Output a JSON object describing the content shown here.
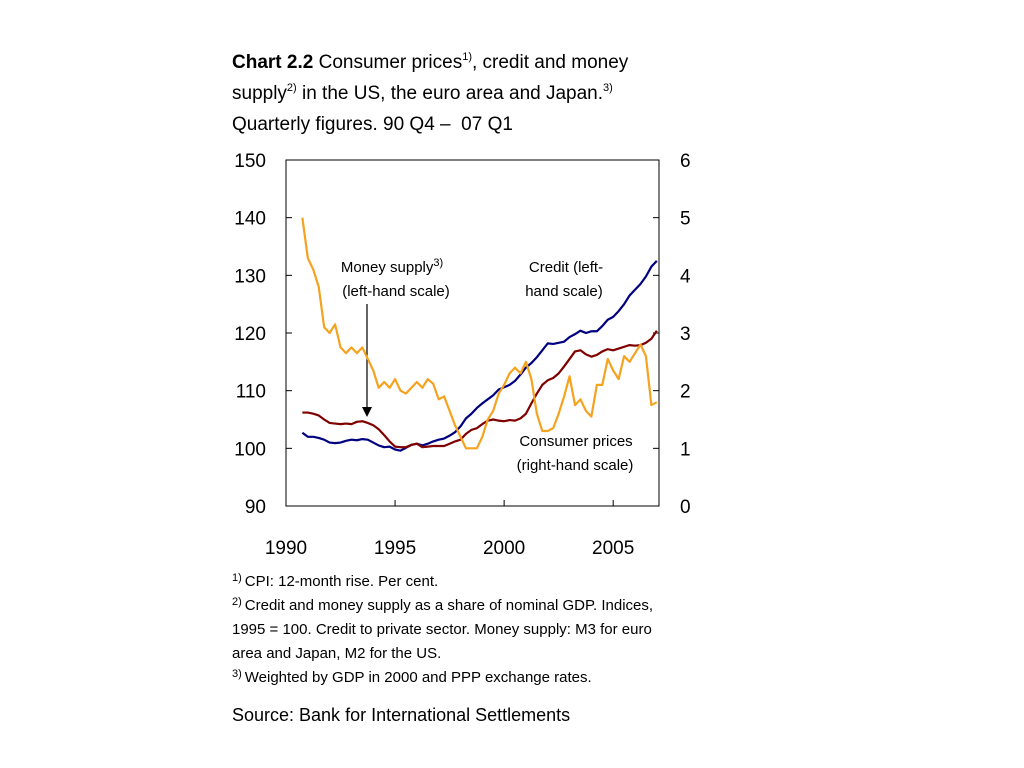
{
  "chart_data": {
    "type": "line",
    "title": [
      "Chart 2.2",
      " Consumer prices",
      "1)",
      ", credit and money",
      "supply",
      "2)",
      " in the US, the euro area and Japan.",
      "3)"
    ],
    "subtitle": "Quarterly figures. 90 Q4 –  07 Q1",
    "annotations": [
      {
        "text": "Money supply",
        "note": "3)",
        "line2": "(left-hand scale)"
      },
      {
        "text": "Credit (left-",
        "line2": "hand scale)"
      },
      {
        "text": "Consumer prices",
        "line2": "(right-hand scale)"
      }
    ],
    "x": [
      1990.75,
      1991,
      1991.25,
      1991.5,
      1991.75,
      1992,
      1992.25,
      1992.5,
      1992.75,
      1993,
      1993.25,
      1993.5,
      1993.75,
      1994,
      1994.25,
      1994.5,
      1994.75,
      1995,
      1995.25,
      1995.5,
      1995.75,
      1996,
      1996.25,
      1996.5,
      1996.75,
      1997,
      1997.25,
      1997.5,
      1997.75,
      1998,
      1998.25,
      1998.5,
      1998.75,
      1999,
      1999.25,
      1999.5,
      1999.75,
      2000,
      2000.25,
      2000.5,
      2000.75,
      2001,
      2001.25,
      2001.5,
      2001.75,
      2002,
      2002.25,
      2002.5,
      2002.75,
      2003,
      2003.25,
      2003.5,
      2003.75,
      2004,
      2004.25,
      2004.5,
      2004.75,
      2005,
      2005.25,
      2005.5,
      2005.75,
      2006,
      2006.25,
      2006.5,
      2006.75,
      2007
    ],
    "series": [
      {
        "color": "#000080",
        "axis": "y",
        "values": [
          102.7,
          102,
          102,
          101.8,
          101.5,
          101,
          100.9,
          101,
          101.3,
          101.5,
          101.4,
          101.6,
          101.5,
          101,
          100.5,
          100.2,
          100.3,
          99.8,
          99.6,
          100.1,
          100.6,
          100.8,
          100.5,
          100.8,
          101.2,
          101.5,
          101.7,
          102.2,
          102.8,
          103.8,
          105.2,
          106,
          107,
          107.8,
          108.5,
          109.2,
          110.2,
          110.6,
          111,
          111.7,
          112.8,
          114,
          114.8,
          115.8,
          117,
          118.2,
          118.1,
          118.3,
          118.5,
          119.3,
          119.8,
          120.4,
          120,
          120.3,
          120.3,
          121.2,
          122.3,
          122.8,
          123.8,
          125,
          126.5,
          127.5,
          128.5,
          129.8,
          131.5,
          132.5
        ]
      },
      {
        "color": "#800000",
        "axis": "y",
        "values": [
          106.2,
          106.2,
          106,
          105.7,
          105,
          104.4,
          104.3,
          104.2,
          104.3,
          104.2,
          104.6,
          104.7,
          104.4,
          104,
          103.3,
          102.3,
          101.2,
          100.3,
          100.2,
          100.2,
          100.6,
          100.8,
          100.2,
          100.3,
          100.4,
          100.4,
          100.4,
          100.8,
          101.2,
          101.5,
          102.5,
          103.2,
          103.5,
          104.2,
          104.8,
          105,
          104.8,
          104.7,
          104.9,
          104.8,
          105.2,
          106,
          107.8,
          109.5,
          111,
          111.8,
          112.2,
          113,
          114.2,
          115.5,
          116.8,
          117,
          116.3,
          115.9,
          116.2,
          116.8,
          117.2,
          117,
          117.3,
          117.6,
          117.9,
          117.8,
          117.9,
          118.3,
          119,
          120.4
        ]
      },
      {
        "color": "#f5a21f",
        "axis": "y2",
        "values": [
          5.0,
          4.3,
          4.1,
          3.8,
          3.1,
          3.0,
          3.15,
          2.75,
          2.65,
          2.75,
          2.65,
          2.75,
          2.55,
          2.35,
          2.05,
          2.15,
          2.05,
          2.2,
          2.0,
          1.95,
          2.05,
          2.15,
          2.05,
          2.2,
          2.12,
          1.85,
          1.9,
          1.65,
          1.4,
          1.2,
          1.0,
          1.0,
          1.0,
          1.2,
          1.5,
          1.65,
          1.95,
          2.1,
          2.3,
          2.4,
          2.3,
          2.5,
          2.2,
          1.6,
          1.3,
          1.3,
          1.35,
          1.6,
          1.9,
          2.25,
          1.75,
          1.85,
          1.65,
          1.55,
          2.1,
          2.1,
          2.55,
          2.35,
          2.2,
          2.6,
          2.5,
          2.65,
          2.8,
          2.6,
          1.75,
          1.8
        ]
      }
    ],
    "xlim": [
      1990,
      2007.1
    ],
    "xticks": [
      1990,
      1995,
      2000,
      2005
    ],
    "ylim": [
      90,
      150
    ],
    "yticks": [
      90,
      100,
      110,
      120,
      130,
      140,
      150
    ],
    "y2lim": [
      0,
      6
    ],
    "y2ticks": [
      0,
      1,
      2,
      3,
      4,
      5,
      6
    ],
    "grid": false,
    "footnotes": [
      {
        "marker": "1)",
        "lines": [
          "CPI: 12-month rise. Per cent."
        ]
      },
      {
        "marker": "2)",
        "lines": [
          "Credit and money supply as a share of nominal GDP. Indices,",
          "1995 = 100. Credit to private sector. Money supply: M3 for euro",
          "area and Japan, M2 for the US."
        ]
      },
      {
        "marker": "3)",
        "lines": [
          "Weighted by GDP in 2000 and PPP exchange rates."
        ]
      }
    ],
    "source": "Source: Bank for International Settlements"
  }
}
